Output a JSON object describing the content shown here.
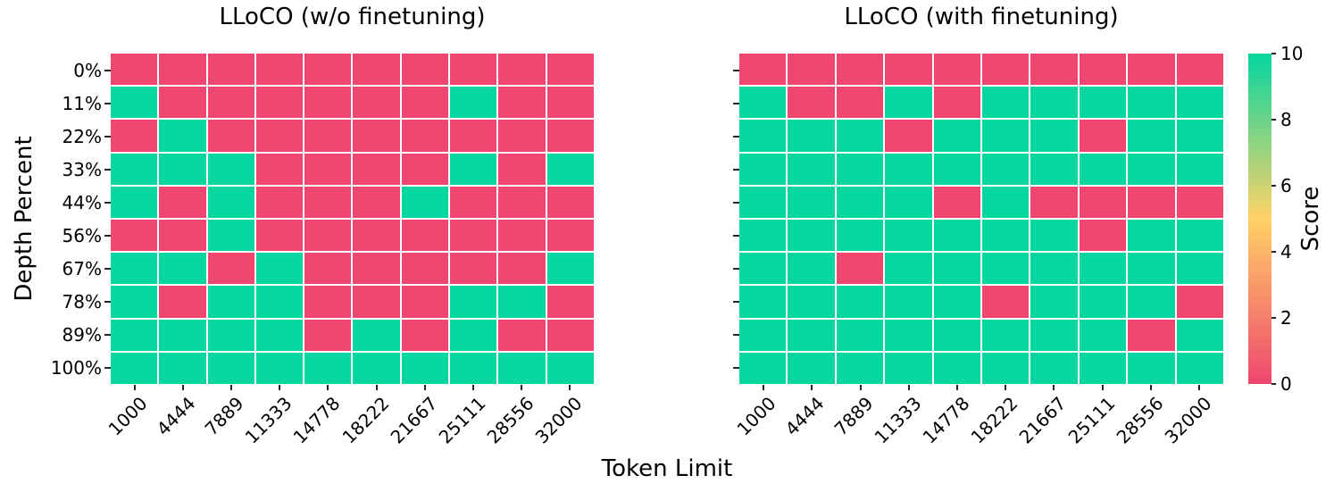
{
  "figure": {
    "xlabel": "Token Limit",
    "ylabel": "Depth Percent",
    "background_color": "#ffffff",
    "grid_line_color": "#ffffff",
    "text_color": "#000000",
    "colorbar": {
      "label": "Score",
      "ticks": [
        0,
        2,
        4,
        6,
        8,
        10
      ],
      "min": 0,
      "max": 10,
      "colors": {
        "low": "#EF476F",
        "mid": "#FFD166",
        "high": "#06D6A0"
      },
      "legend_position": "right"
    }
  },
  "chart_data": [
    {
      "type": "heatmap",
      "title": "LLoCO (w/o finetuning)",
      "xlabel": "Token Limit",
      "ylabel": "Depth Percent",
      "x_categories": [
        "1000",
        "4444",
        "7889",
        "11333",
        "14778",
        "18222",
        "21667",
        "25111",
        "28556",
        "32000"
      ],
      "y_categories": [
        "0%",
        "11%",
        "22%",
        "33%",
        "44%",
        "56%",
        "67%",
        "78%",
        "89%",
        "100%"
      ],
      "vmin": 0,
      "vmax": 10,
      "grid": true,
      "values": [
        [
          0,
          0,
          0,
          0,
          0,
          0,
          0,
          0,
          0,
          0
        ],
        [
          10,
          0,
          0,
          0,
          0,
          0,
          0,
          10,
          0,
          0
        ],
        [
          0,
          10,
          0,
          0,
          0,
          0,
          0,
          0,
          0,
          0
        ],
        [
          10,
          10,
          10,
          0,
          0,
          0,
          0,
          10,
          0,
          10
        ],
        [
          10,
          0,
          10,
          0,
          0,
          0,
          10,
          0,
          0,
          0
        ],
        [
          0,
          0,
          10,
          0,
          0,
          0,
          0,
          0,
          0,
          0
        ],
        [
          10,
          10,
          0,
          10,
          0,
          0,
          0,
          0,
          0,
          10
        ],
        [
          10,
          0,
          10,
          10,
          0,
          0,
          0,
          10,
          10,
          0
        ],
        [
          10,
          10,
          10,
          10,
          0,
          10,
          0,
          10,
          0,
          0
        ],
        [
          10,
          10,
          10,
          10,
          10,
          10,
          10,
          10,
          10,
          10
        ]
      ]
    },
    {
      "type": "heatmap",
      "title": "LLoCO (with finetuning)",
      "xlabel": "Token Limit",
      "ylabel": "Depth Percent",
      "x_categories": [
        "1000",
        "4444",
        "7889",
        "11333",
        "14778",
        "18222",
        "21667",
        "25111",
        "28556",
        "32000"
      ],
      "y_categories": [
        "0%",
        "11%",
        "22%",
        "33%",
        "44%",
        "56%",
        "67%",
        "78%",
        "89%",
        "100%"
      ],
      "vmin": 0,
      "vmax": 10,
      "grid": true,
      "values": [
        [
          0,
          0,
          0,
          0,
          0,
          0,
          0,
          0,
          0,
          0
        ],
        [
          10,
          0,
          0,
          10,
          0,
          10,
          10,
          10,
          10,
          10
        ],
        [
          10,
          10,
          10,
          0,
          10,
          10,
          10,
          0,
          10,
          10
        ],
        [
          10,
          10,
          10,
          10,
          10,
          10,
          10,
          10,
          10,
          10
        ],
        [
          10,
          10,
          10,
          10,
          0,
          10,
          0,
          0,
          0,
          0
        ],
        [
          10,
          10,
          10,
          10,
          10,
          10,
          10,
          0,
          10,
          10
        ],
        [
          10,
          10,
          0,
          10,
          10,
          10,
          10,
          10,
          10,
          10
        ],
        [
          10,
          10,
          10,
          10,
          10,
          0,
          10,
          10,
          10,
          0
        ],
        [
          10,
          10,
          10,
          10,
          10,
          10,
          10,
          10,
          0,
          10
        ],
        [
          10,
          10,
          10,
          10,
          10,
          10,
          10,
          10,
          10,
          10
        ]
      ]
    }
  ]
}
